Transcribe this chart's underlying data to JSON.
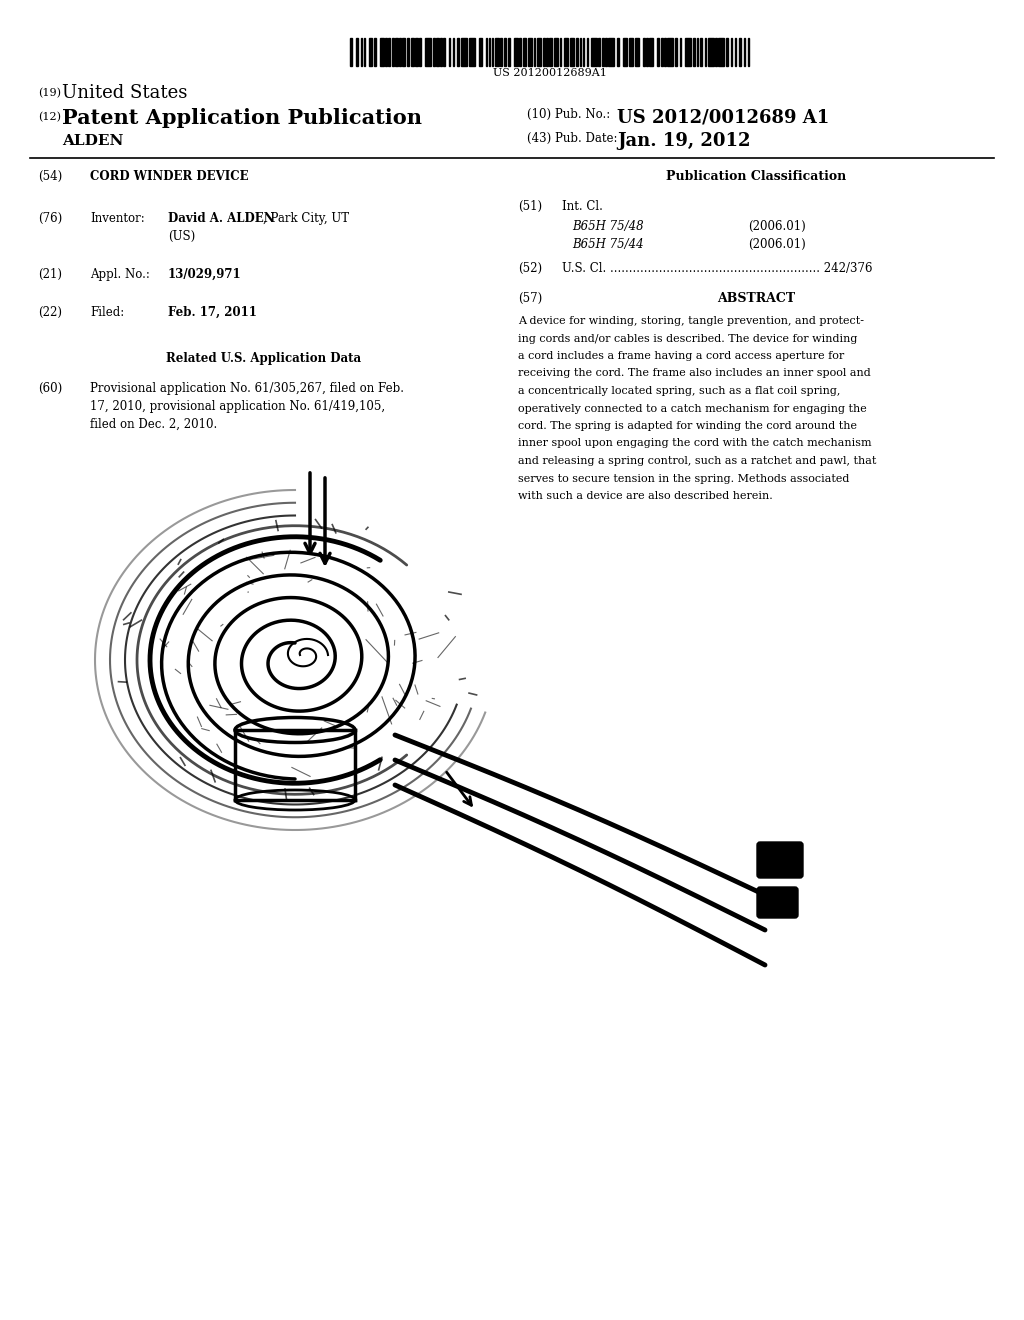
{
  "background_color": "#ffffff",
  "barcode_text": "US 20120012689A1",
  "pub_num_label": "(10) Pub. No.:",
  "pub_num": "US 2012/0012689 A1",
  "pub_date_label": "(43) Pub. Date:",
  "pub_date": "Jan. 19, 2012",
  "field54_label": "(54)",
  "field54": "CORD WINDER DEVICE",
  "pub_class_title": "Publication Classification",
  "field51_label": "(51)",
  "field51_title": "Int. Cl.",
  "field51_b1": "B65H 75/48",
  "field51_b1_date": "(2006.01)",
  "field51_b2": "B65H 75/44",
  "field51_b2_date": "(2006.01)",
  "field52_label": "(52)",
  "field52_text": "U.S. Cl.",
  "field52_dots": "........................................................",
  "field52_num": "242/376",
  "field57_label": "(57)",
  "field57_title": "ABSTRACT",
  "field76_label": "(76)",
  "field76_title": "Inventor:",
  "field76_name": "David A. ALDEN",
  "field76_loc": ", Park City, UT",
  "field76_country": "(US)",
  "field21_label": "(21)",
  "field21_title": "Appl. No.:",
  "field21_value": "13/029,971",
  "field22_label": "(22)",
  "field22_title": "Filed:",
  "field22_value": "Feb. 17, 2011",
  "related_title": "Related U.S. Application Data",
  "field60_label": "(60)",
  "abstract_lines": [
    "A device for winding, storing, tangle prevention, and protect-",
    "ing cords and/or cables is described. The device for winding",
    "a cord includes a frame having a cord access aperture for",
    "receiving the cord. The frame also includes an inner spool and",
    "a concentrically located spring, such as a flat coil spring,",
    "operatively connected to a catch mechanism for engaging the",
    "cord. The spring is adapted for winding the cord around the",
    "inner spool upon engaging the cord with the catch mechanism",
    "and releasing a spring control, such as a ratchet and pawl, that",
    "serves to secure tension in the spring. Methods associated",
    "with such a device are also described herein."
  ],
  "field60_lines": [
    "Provisional application No. 61/305,267, filed on Feb.",
    "17, 2010, provisional application No. 61/419,105,",
    "filed on Dec. 2, 2010."
  ]
}
